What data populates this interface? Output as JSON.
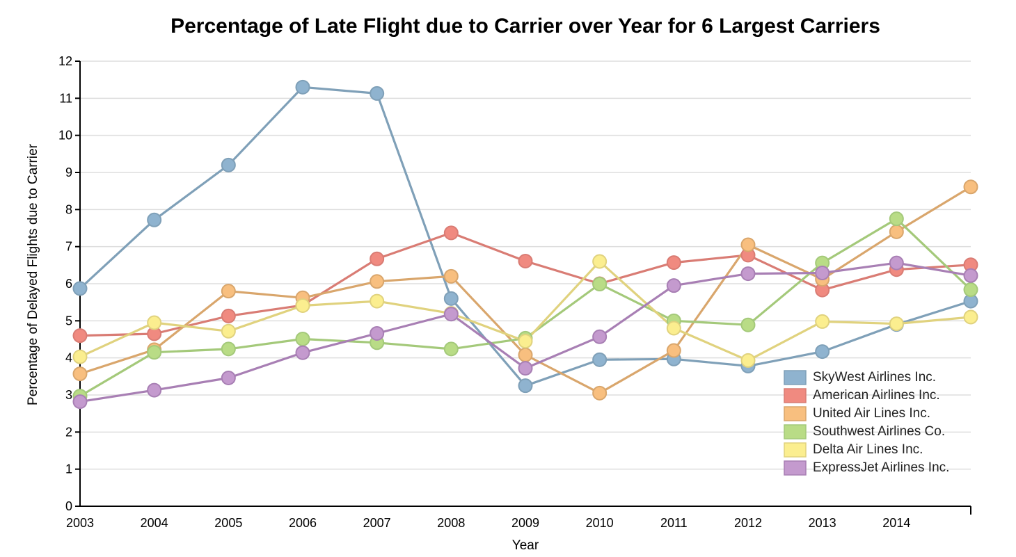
{
  "chart_data": {
    "type": "line",
    "title": "Percentage of Late Flight due to Carrier over Year for 6 Largest Carriers",
    "xlabel": "Year",
    "ylabel": "Percentage of Delayed Flights due to Carrier",
    "x": [
      2003,
      2004,
      2005,
      2006,
      2007,
      2008,
      2009,
      2010,
      2011,
      2012,
      2013,
      2014,
      2015
    ],
    "x_tick_labels": [
      "2003",
      "2004",
      "2005",
      "2006",
      "2007",
      "2008",
      "2009",
      "2010",
      "2011",
      "2012",
      "2013",
      "2014"
    ],
    "xlim": [
      2003,
      2015
    ],
    "ylim": [
      0,
      12
    ],
    "y_ticks": [
      0,
      1,
      2,
      3,
      4,
      5,
      6,
      7,
      8,
      9,
      10,
      11,
      12
    ],
    "grid": true,
    "legend_position": "bottom-right",
    "series": [
      {
        "name": "SkyWest Airlines Inc.",
        "color": "#8fb3cf",
        "line_color": "#7fa0b8",
        "values": [
          5.87,
          7.72,
          9.2,
          11.3,
          11.13,
          5.6,
          3.25,
          3.95,
          3.97,
          3.78,
          4.17,
          4.9,
          5.53
        ]
      },
      {
        "name": "American Airlines Inc.",
        "color": "#f08a80",
        "line_color": "#d97c74",
        "values": [
          4.6,
          4.65,
          5.13,
          5.42,
          6.67,
          7.37,
          6.61,
          6.0,
          6.57,
          6.77,
          5.83,
          6.38,
          6.51
        ]
      },
      {
        "name": "United Air Lines Inc.",
        "color": "#f8bf7f",
        "line_color": "#d9a66c",
        "values": [
          3.57,
          4.22,
          5.8,
          5.62,
          6.06,
          6.2,
          4.08,
          3.05,
          4.2,
          7.05,
          6.12,
          7.4,
          8.61
        ]
      },
      {
        "name": "Southwest Airlines Co.",
        "color": "#b9dc86",
        "line_color": "#a4c97a",
        "values": [
          2.97,
          4.15,
          4.24,
          4.51,
          4.41,
          4.24,
          4.53,
          5.99,
          5.0,
          4.89,
          6.56,
          7.75,
          5.84
        ]
      },
      {
        "name": "Delta Air Lines Inc.",
        "color": "#fbee8f",
        "line_color": "#e0d27e",
        "values": [
          4.03,
          4.95,
          4.72,
          5.41,
          5.53,
          5.2,
          4.45,
          6.6,
          4.8,
          3.93,
          4.98,
          4.92,
          5.1
        ]
      },
      {
        "name": "ExpressJet Airlines Inc.",
        "color": "#c49ace",
        "line_color": "#a87fb4",
        "values": [
          2.82,
          3.13,
          3.46,
          4.14,
          4.66,
          5.18,
          3.72,
          4.57,
          5.95,
          6.27,
          6.29,
          6.56,
          6.22
        ]
      }
    ]
  }
}
